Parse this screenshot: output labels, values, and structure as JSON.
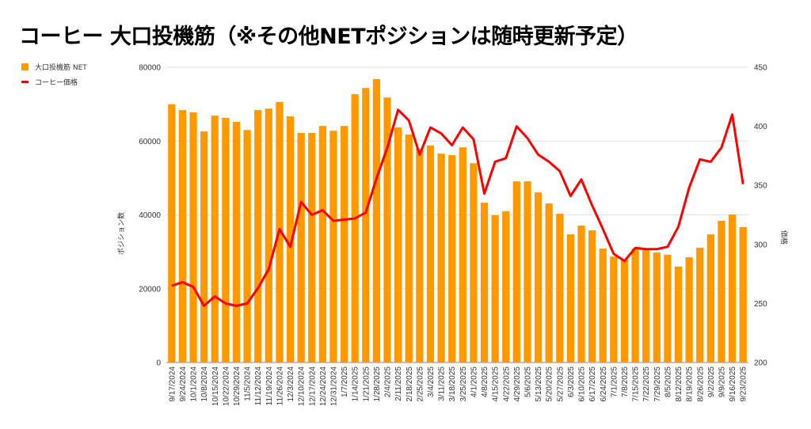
{
  "title": "コーヒー 大口投機筋（※その他NETポジションは随時更新予定）",
  "chart_data": {
    "type": "bar+line",
    "title": "コーヒー 大口投機筋（※その他NETポジションは随時更新予定）",
    "legend_position": "top-left",
    "colors": {
      "bars": "#FF9900",
      "line": "#FF0000",
      "grid": "#E0E0E0"
    },
    "ylabel_left": "ポジション数",
    "ylabel_right": "価格",
    "ylim_left": [
      0,
      80000
    ],
    "ylim_right": [
      200,
      450
    ],
    "yticks_left": [
      "0",
      "20000",
      "40000",
      "60000",
      "80000"
    ],
    "yticks_right": [
      "200",
      "250",
      "300",
      "350",
      "400",
      "450"
    ],
    "categories": [
      "9/17/2024",
      "9/24/2024",
      "10/1/2024",
      "10/8/2024",
      "10/15/2024",
      "10/22/2024",
      "10/29/2024",
      "11/5/2024",
      "11/12/2024",
      "11/19/2024",
      "11/26/2024",
      "12/3/2024",
      "12/10/2024",
      "12/17/2024",
      "12/24/2024",
      "12/31/2024",
      "1/7/2025",
      "1/14/2025",
      "1/21/2025",
      "1/28/2025",
      "2/4/2025",
      "2/11/2025",
      "2/18/2025",
      "2/25/2025",
      "3/4/2025",
      "3/11/2025",
      "3/18/2025",
      "3/25/2025",
      "4/1/2025",
      "4/8/2025",
      "4/15/2025",
      "4/22/2025",
      "4/29/2025",
      "5/6/2025",
      "5/13/2025",
      "5/20/2025",
      "5/27/2025",
      "6/3/2025",
      "6/10/2025",
      "6/17/2025",
      "6/24/2025",
      "7/1/2025",
      "7/8/2025",
      "7/15/2025",
      "7/22/2025",
      "7/29/2025",
      "8/5/2025",
      "8/12/2025",
      "8/19/2025",
      "8/26/2025",
      "9/2/2025",
      "9/9/2025",
      "9/16/2025",
      "9/23/2025"
    ],
    "series": [
      {
        "name": "大口投機筋  NET",
        "type": "bar",
        "axis": "left",
        "values": [
          70000,
          68400,
          67800,
          62600,
          66900,
          66300,
          65200,
          63000,
          68400,
          68800,
          70600,
          66700,
          62200,
          62200,
          64100,
          62800,
          64100,
          72700,
          74400,
          76800,
          71800,
          63700,
          61800,
          57900,
          58800,
          56600,
          56200,
          58300,
          54000,
          43300,
          39900,
          41000,
          49100,
          49100,
          46100,
          43100,
          40300,
          34700,
          37100,
          35800,
          30900,
          28700,
          27900,
          30900,
          30900,
          29800,
          29200,
          26000,
          28500,
          31100,
          34700,
          38400,
          40100,
          36700
        ]
      },
      {
        "name": "コーヒー価格",
        "type": "line",
        "axis": "right",
        "values": [
          265,
          268,
          264,
          248,
          256,
          250,
          248,
          250,
          263,
          279,
          313,
          298,
          336,
          325,
          329,
          320,
          321,
          322,
          327,
          356,
          382,
          414,
          405,
          376,
          399,
          394,
          384,
          399,
          389,
          343,
          370,
          373,
          400,
          390,
          376,
          370,
          362,
          341,
          355,
          333,
          313,
          292,
          286,
          297,
          296,
          296,
          298,
          315,
          348,
          372,
          370,
          382,
          410,
          351
        ]
      }
    ]
  }
}
